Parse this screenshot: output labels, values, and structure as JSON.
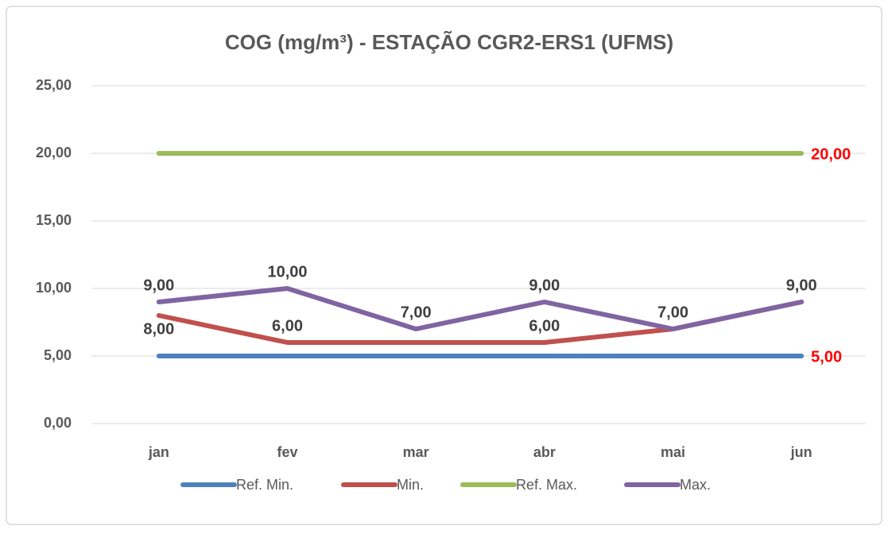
{
  "chart_data": {
    "type": "line",
    "title": "COG (mg/m³) - ESTAÇÃO CGR2-ERS1 (UFMS)",
    "categories": [
      "jan",
      "fev",
      "mar",
      "abr",
      "mai",
      "jun"
    ],
    "series": [
      {
        "name": "Ref. Min.",
        "color": "#4f81bd",
        "values": [
          5,
          5,
          5,
          5,
          5,
          5
        ],
        "value_labels": [
          null,
          null,
          null,
          null,
          null,
          "5,00"
        ]
      },
      {
        "name": "Min.",
        "color": "#c0504d",
        "values": [
          8,
          6,
          6,
          6,
          7,
          9
        ],
        "value_labels": [
          "8,00",
          "6,00",
          null,
          "6,00",
          null,
          null
        ]
      },
      {
        "name": "Ref. Max.",
        "color": "#9bbb59",
        "values": [
          20,
          20,
          20,
          20,
          20,
          20
        ],
        "value_labels": [
          null,
          null,
          null,
          null,
          null,
          "20,00"
        ]
      },
      {
        "name": "Max.",
        "color": "#8064a2",
        "values": [
          9,
          10,
          7,
          9,
          7,
          9
        ],
        "value_labels": [
          "9,00",
          "10,00",
          "7,00",
          "9,00",
          "7,00",
          "9,00"
        ]
      }
    ],
    "ylim": [
      0,
      25
    ],
    "yticks": [
      {
        "value": 0,
        "label": "0,00"
      },
      {
        "value": 5,
        "label": "5,00"
      },
      {
        "value": 10,
        "label": "10,00"
      },
      {
        "value": 15,
        "label": "15,00"
      },
      {
        "value": 20,
        "label": "20,00"
      },
      {
        "value": 25,
        "label": "25,00"
      }
    ],
    "grid": true,
    "legend": "bottom"
  }
}
